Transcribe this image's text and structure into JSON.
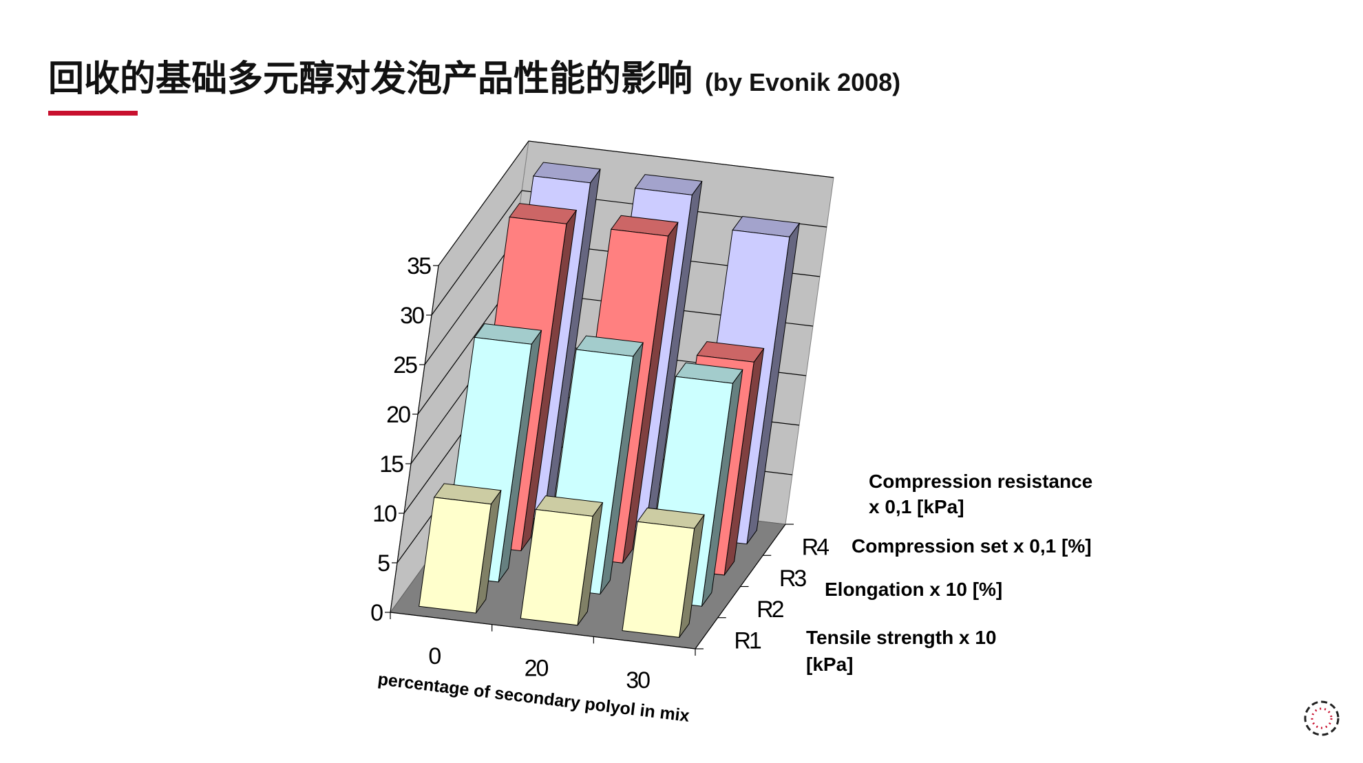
{
  "slide": {
    "title": "回收的基础多元醇对发泡产品性能的影响",
    "subtitle": "(by Evonik 2008)"
  },
  "colors": {
    "accent": "#c8102e",
    "R1": "#ffffcc",
    "R2": "#ccffff",
    "R3": "#ff8080",
    "R4": "#ccccff",
    "floor": "#808080",
    "walls": "#c0c0c0"
  },
  "logo": {
    "icon": "dotted-circle-logo-icon"
  },
  "chart_data": {
    "type": "bar",
    "subtype": "3d-column",
    "title": "",
    "xlabel": "percentage of secondary polyol in mix",
    "ylabel": "",
    "ylim": [
      0,
      35
    ],
    "yticks": [
      "0",
      "5",
      "10",
      "15",
      "20",
      "25",
      "30",
      "35"
    ],
    "categories": [
      "0",
      "20",
      "30"
    ],
    "depth_labels": [
      "R1",
      "R2",
      "R3",
      "R4"
    ],
    "grid": true,
    "series": [
      {
        "name": "Tensile strength  x 10 [kPa]",
        "label_lines": [
          "Tensile strength  x 10",
          "[kPa]"
        ],
        "depth": "R1",
        "values": [
          11,
          11,
          11
        ],
        "color": "#ffffcc"
      },
      {
        "name": "Elongation  x 10 [%]",
        "label_lines": [
          "Elongation  x 10 [%]"
        ],
        "depth": "R2",
        "values": [
          24,
          24,
          22.5
        ],
        "color": "#ccffff"
      },
      {
        "name": "Compression set x 0,1 [%]",
        "label_lines": [
          "Compression set x 0,1 [%]"
        ],
        "depth": "R3",
        "values": [
          33,
          33,
          21.5
        ],
        "color": "#ff8080"
      },
      {
        "name": "Compression resistance x 0,1 [kPa]",
        "label_lines": [
          "Compression resistance",
          " x 0,1 [kPa]"
        ],
        "depth": "R4",
        "values": [
          34,
          34,
          31
        ],
        "color": "#ccccff"
      }
    ]
  }
}
